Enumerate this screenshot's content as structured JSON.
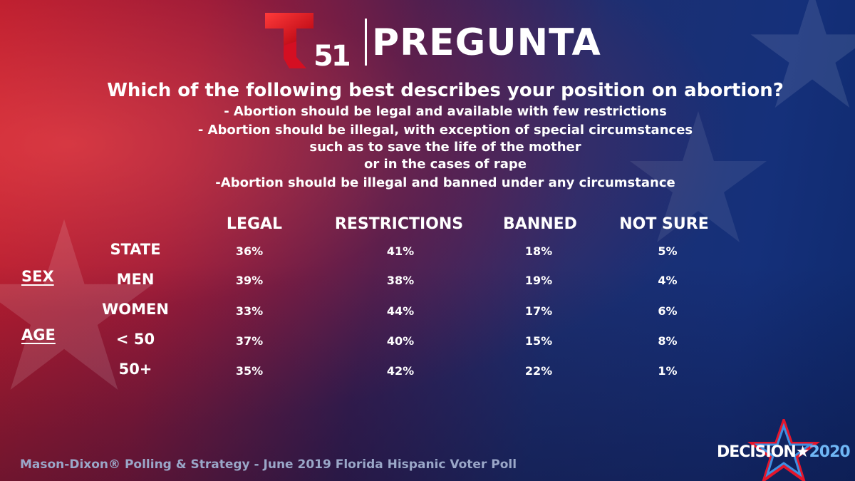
{
  "header": {
    "logo_number": "51",
    "title": "PREGUNTA"
  },
  "question": {
    "title": "Which of the following best describes your position on abortion?",
    "options": [
      "- Abortion should be legal and available with few restrictions",
      "- Abortion should be illegal, with exception of special circumstances",
      "such as to save the life of the mother",
      "or in the cases of rape",
      "-Abortion should be illegal and banned under any circumstance"
    ]
  },
  "chart_data": {
    "type": "table",
    "columns": [
      "LEGAL",
      "RESTRICTIONS",
      "BANNED",
      "NOT SURE"
    ],
    "groups": [
      {
        "label": "SEX",
        "rows": [
          "MEN",
          "WOMEN"
        ]
      },
      {
        "label": "AGE",
        "rows": [
          "< 50",
          "50+"
        ]
      }
    ],
    "rows": [
      {
        "label": "STATE",
        "values": [
          "36%",
          "41%",
          "18%",
          "5%"
        ]
      },
      {
        "label": "MEN",
        "values": [
          "39%",
          "38%",
          "19%",
          "4%"
        ]
      },
      {
        "label": "WOMEN",
        "values": [
          "33%",
          "44%",
          "17%",
          "6%"
        ]
      },
      {
        "label": "< 50",
        "values": [
          "37%",
          "40%",
          "15%",
          "8%"
        ]
      },
      {
        "label": "50+",
        "values": [
          "35%",
          "42%",
          "22%",
          "1%"
        ]
      }
    ]
  },
  "footer": {
    "source": "Mason-Dixon® Polling & Strategy - June 2019 Florida Hispanic Voter Poll",
    "badge_word": "DECISION",
    "badge_star": "★",
    "badge_year": "2020"
  },
  "colors": {
    "logo_red": "#e4152b",
    "badge_red": "#e4152b",
    "badge_blue": "#3f8fe0",
    "year_blue": "#6fb6f5",
    "source_text": "#9aa7c8"
  },
  "icons": {
    "logo": "telemundo-t-icon",
    "badge_star": "star-outline-icon"
  }
}
